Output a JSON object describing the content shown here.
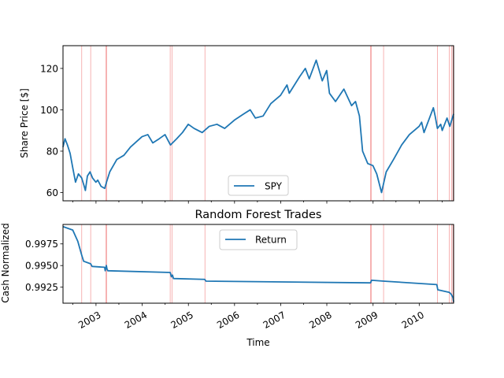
{
  "chart_data": [
    {
      "type": "line",
      "title": "",
      "xlabel": "",
      "ylabel": "Share Price [$]",
      "xlim": [
        "2002-04-15",
        "2010-09-30"
      ],
      "ylim": [
        56,
        131
      ],
      "yticks": [
        60,
        80,
        100,
        120
      ],
      "grid": false,
      "legend": "lower center",
      "series": [
        {
          "name": "SPY",
          "color": "#1f77b4",
          "x": [
            "2002-04-15",
            "2002-05-01",
            "2002-05-20",
            "2002-06-10",
            "2002-07-01",
            "2002-07-23",
            "2002-08-15",
            "2002-09-10",
            "2002-09-30",
            "2002-10-09",
            "2002-10-25",
            "2002-11-15",
            "2002-12-05",
            "2002-12-31",
            "2003-01-15",
            "2003-02-10",
            "2003-03-11",
            "2003-03-25",
            "2003-04-20",
            "2003-06-15",
            "2003-08-10",
            "2003-10-01",
            "2003-12-31",
            "2004-02-15",
            "2004-03-25",
            "2004-05-15",
            "2004-06-30",
            "2004-08-12",
            "2004-09-30",
            "2004-11-15",
            "2004-12-31",
            "2005-02-15",
            "2005-04-20",
            "2005-06-15",
            "2005-08-15",
            "2005-10-15",
            "2005-12-31",
            "2006-03-15",
            "2006-05-05",
            "2006-06-15",
            "2006-08-15",
            "2006-10-15",
            "2006-12-31",
            "2007-02-20",
            "2007-03-10",
            "2007-05-31",
            "2007-07-15",
            "2007-08-15",
            "2007-10-09",
            "2007-11-26",
            "2007-12-31",
            "2008-01-22",
            "2008-03-10",
            "2008-05-15",
            "2008-07-15",
            "2008-08-15",
            "2008-09-15",
            "2008-10-10",
            "2008-11-20",
            "2008-12-31",
            "2009-01-30",
            "2009-03-09",
            "2009-04-15",
            "2009-06-12",
            "2009-08-15",
            "2009-10-15",
            "2009-12-31",
            "2010-01-20",
            "2010-02-08",
            "2010-04-23",
            "2010-05-07",
            "2010-05-25",
            "2010-06-20",
            "2010-07-02",
            "2010-08-09",
            "2010-08-31",
            "2010-09-30"
          ],
          "y": [
            82,
            86,
            83,
            79,
            72,
            65,
            69,
            67,
            63,
            61,
            68,
            70,
            67,
            65,
            66,
            63,
            62,
            65,
            70,
            76,
            78,
            82,
            87,
            88,
            84,
            86,
            88,
            83,
            86,
            89,
            93,
            91,
            89,
            92,
            93,
            91,
            95,
            98,
            100,
            96,
            97,
            103,
            107,
            112,
            108,
            116,
            120,
            115,
            124,
            114,
            119,
            108,
            104,
            110,
            102,
            104,
            97,
            80,
            74,
            73,
            69,
            60,
            70,
            76,
            83,
            88,
            92,
            94,
            89,
            101,
            97,
            91,
            93,
            90,
            96,
            92,
            98
          ]
        }
      ],
      "trade_lines": [
        "2002-09-10",
        "2002-11-20",
        "2003-03-20",
        "2003-03-27",
        "2004-08-10",
        "2004-08-24",
        "2005-05-12",
        "2008-12-12",
        "2008-12-18",
        "2009-03-25",
        "2010-05-25",
        "2010-08-27",
        "2010-09-15",
        "2010-09-25"
      ]
    },
    {
      "type": "line",
      "title": "Random Forest Trades",
      "xlabel": "Time",
      "ylabel": "Cash Normalized",
      "xlim": [
        "2002-04-15",
        "2010-09-30"
      ],
      "ylim": [
        0.99065,
        0.99975
      ],
      "yticks": [
        "0.9925",
        "0.9950",
        "0.9975"
      ],
      "xticks": [
        "2003",
        "2004",
        "2005",
        "2006",
        "2007",
        "2008",
        "2009",
        "2010"
      ],
      "grid": false,
      "legend": "upper center",
      "series": [
        {
          "name": "Return",
          "color": "#1f77b4",
          "x": [
            "2002-04-15",
            "2002-07-01",
            "2002-08-10",
            "2002-09-10",
            "2002-09-25",
            "2002-11-20",
            "2002-12-01",
            "2003-03-10",
            "2003-03-15",
            "2003-03-24",
            "2003-03-29",
            "2003-04-05",
            "2004-08-10",
            "2004-08-20",
            "2004-08-28",
            "2004-09-05",
            "2005-05-10",
            "2005-05-20",
            "2008-12-12",
            "2008-12-20",
            "2009-03-25",
            "2010-05-20",
            "2010-05-28",
            "2010-08-27",
            "2010-09-10",
            "2010-09-25",
            "2010-09-30"
          ],
          "y": [
            0.9995,
            0.9991,
            0.9978,
            0.9962,
            0.9955,
            0.9952,
            0.9949,
            0.9948,
            0.9944,
            0.995,
            0.9946,
            0.9944,
            0.9942,
            0.9937,
            0.9939,
            0.9935,
            0.9934,
            0.9932,
            0.993,
            0.9933,
            0.9932,
            0.9928,
            0.9922,
            0.9919,
            0.9917,
            0.9913,
            0.9908
          ]
        }
      ],
      "trade_lines": [
        "2002-09-10",
        "2002-11-20",
        "2003-03-20",
        "2003-03-27",
        "2004-08-10",
        "2004-08-24",
        "2005-05-12",
        "2008-12-12",
        "2008-12-18",
        "2009-03-25",
        "2010-05-25",
        "2010-08-27",
        "2010-09-15",
        "2010-09-25"
      ]
    }
  ]
}
